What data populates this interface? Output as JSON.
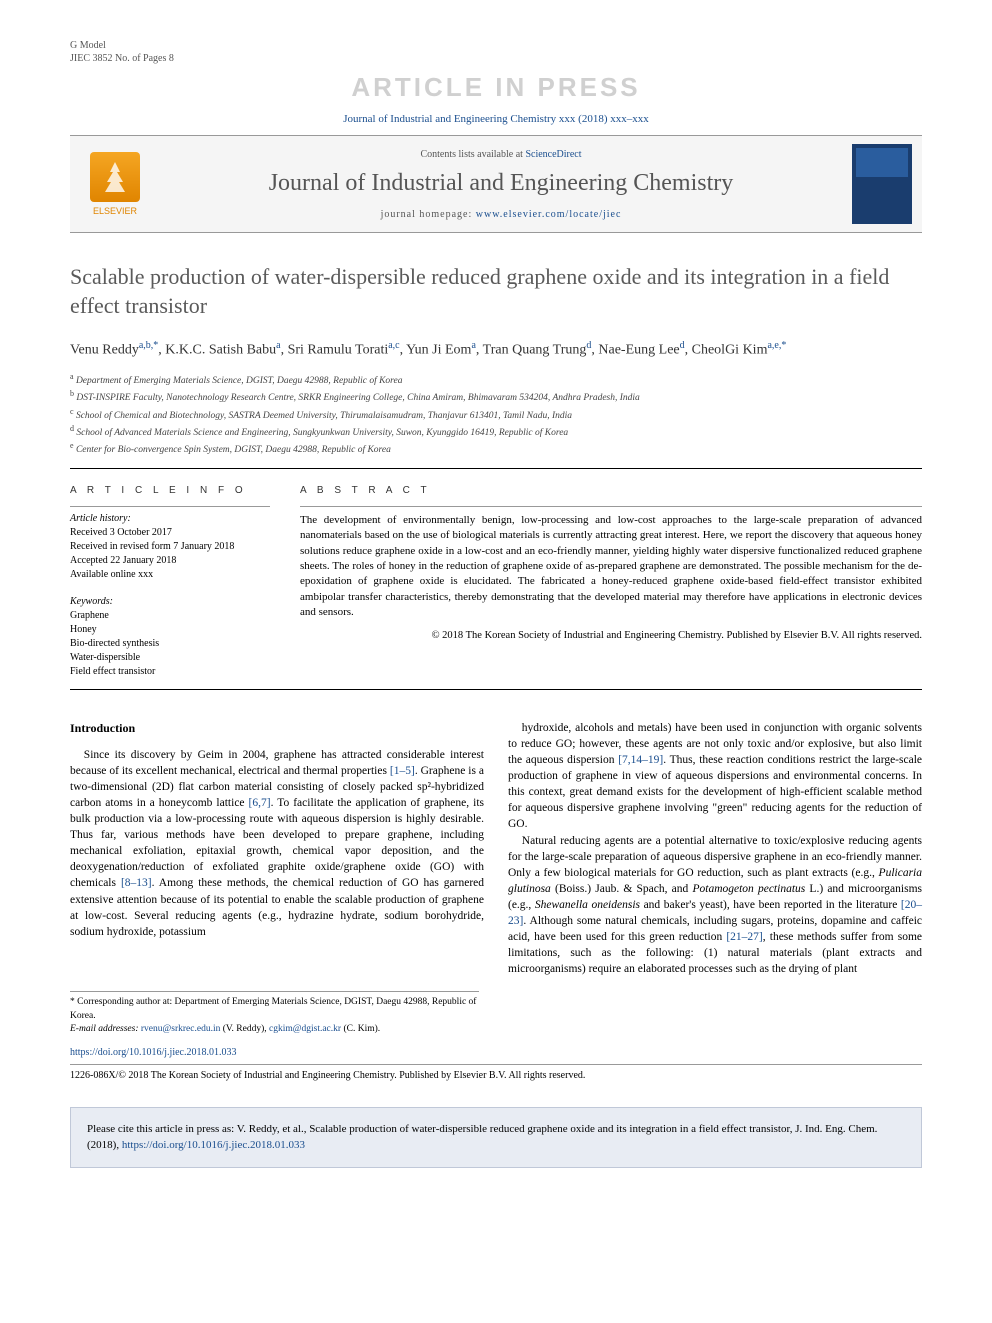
{
  "header": {
    "gmodel": "G Model",
    "gmodel_sub": "JIEC 3852 No. of Pages 8",
    "press_banner": "ARTICLE IN PRESS",
    "citeline": "Journal of Industrial and Engineering Chemistry xxx (2018) xxx–xxx"
  },
  "masthead": {
    "elsevier": "ELSEVIER",
    "contents_prefix": "Contents lists available at ",
    "contents_link": "ScienceDirect",
    "journal_name": "Journal of Industrial and Engineering Chemistry",
    "homepage_prefix": "journal homepage: ",
    "homepage_url": "www.elsevier.com/locate/jiec"
  },
  "article": {
    "title": "Scalable production of water-dispersible reduced graphene oxide and its integration in a field effect transistor",
    "authors_html": "Venu Reddy<sup>a,b,*</sup>, K.K.C. Satish Babu<sup>a</sup>, Sri Ramulu Torati<sup>a,c</sup>, Yun Ji Eom<sup>a</sup>, Tran Quang Trung<sup>d</sup>, Nae-Eung Lee<sup>d</sup>, CheolGi Kim<sup>a,e,*</sup>",
    "affiliations": [
      "a Department of Emerging Materials Science, DGIST, Daegu 42988, Republic of Korea",
      "b DST-INSPIRE Faculty, Nanotechnology Research Centre, SRKR Engineering College, China Amiram, Bhimavaram 534204, Andhra Pradesh, India",
      "c School of Chemical and Biotechnology, SASTRA Deemed University, Thirumalaisamudram, Thanjavur 613401, Tamil Nadu, India",
      "d School of Advanced Materials Science and Engineering, Sungkyunkwan University, Suwon, Kyunggido 16419, Republic of Korea",
      "e Center for Bio-convergence Spin System, DGIST, Daegu 42988, Republic of Korea"
    ]
  },
  "info": {
    "heading": "A R T I C L E   I N F O",
    "history_label": "Article history:",
    "history": [
      "Received 3 October 2017",
      "Received in revised form 7 January 2018",
      "Accepted 22 January 2018",
      "Available online xxx"
    ],
    "keywords_label": "Keywords:",
    "keywords": [
      "Graphene",
      "Honey",
      "Bio-directed synthesis",
      "Water-dispersible",
      "Field effect transistor"
    ]
  },
  "abstract": {
    "heading": "A B S T R A C T",
    "text": "The development of environmentally benign, low-processing and low-cost approaches to the large-scale preparation of advanced nanomaterials based on the use of biological materials is currently attracting great interest. Here, we report the discovery that aqueous honey solutions reduce graphene oxide in a low-cost and an eco-friendly manner, yielding highly water dispersive functionalized reduced graphene sheets. The roles of honey in the reduction of graphene oxide of as-prepared graphene are demonstrated. The possible mechanism for the de-epoxidation of graphene oxide is elucidated. The fabricated a honey-reduced graphene oxide-based field-effect transistor exhibited ambipolar transfer characteristics, thereby demonstrating that the developed material may therefore have applications in electronic devices and sensors.",
    "copyright": "© 2018 The Korean Society of Industrial and Engineering Chemistry. Published by Elsevier B.V. All rights reserved."
  },
  "body": {
    "intro_heading": "Introduction",
    "col1_p1": "Since its discovery by Geim in 2004, graphene has attracted considerable interest because of its excellent mechanical, electrical and thermal properties [1–5]. Graphene is a two-dimensional (2D) flat carbon material consisting of closely packed sp²-hybridized carbon atoms in a honeycomb lattice [6,7]. To facilitate the application of graphene, its bulk production via a low-processing route with aqueous dispersion is highly desirable. Thus far, various methods have been developed to prepare graphene, including mechanical exfoliation, epitaxial growth, chemical vapor deposition, and the deoxygenation/reduction of exfoliated graphite oxide/graphene oxide (GO) with chemicals [8–13]. Among these methods, the chemical reduction of GO has garnered extensive attention because of its potential to enable the scalable production of graphene at low-cost. Several reducing agents (e.g., hydrazine hydrate, sodium borohydride, sodium hydroxide, potassium",
    "col2_p1": "hydroxide, alcohols and metals) have been used in conjunction with organic solvents to reduce GO; however, these agents are not only toxic and/or explosive, but also limit the aqueous dispersion [7,14–19]. Thus, these reaction conditions restrict the large-scale production of graphene in view of aqueous dispersions and environmental concerns. In this context, great demand exists for the development of high-efficient scalable method for aqueous dispersive graphene involving \"green\" reducing agents for the reduction of GO.",
    "col2_p2": "Natural reducing agents are a potential alternative to toxic/explosive reducing agents for the large-scale preparation of aqueous dispersive graphene in an eco-friendly manner. Only a few biological materials for GO reduction, such as plant extracts (e.g., Pulicaria glutinosa (Boiss.) Jaub. & Spach, and Potamogeton pectinatus L.) and microorganisms (e.g., Shewanella oneidensis and baker's yeast), have been reported in the literature [20–23]. Although some natural chemicals, including sugars, proteins, dopamine and caffeic acid, have been used for this green reduction [21–27], these methods suffer from some limitations, such as the following: (1) natural materials (plant extracts and microorganisms) require an elaborated processes such as the drying of plant"
  },
  "footnotes": {
    "corresponding": "* Corresponding author at: Department of Emerging Materials Science, DGIST, Daegu 42988, Republic of Korea.",
    "email_label": "E-mail addresses:",
    "email1": "rvenu@srkrec.edu.in",
    "email1_who": "(V. Reddy),",
    "email2": "cgkim@dgist.ac.kr",
    "email2_who": "(C. Kim)."
  },
  "doi": {
    "url": "https://doi.org/10.1016/j.jiec.2018.01.033",
    "issn_line": "1226-086X/© 2018 The Korean Society of Industrial and Engineering Chemistry. Published by Elsevier B.V. All rights reserved."
  },
  "citebox": {
    "prefix": "Please cite this article in press as: V. Reddy, et al., Scalable production of water-dispersible reduced graphene oxide and its integration in a field effect transistor, J. Ind. Eng. Chem. (2018), ",
    "doi": "https://doi.org/10.1016/j.jiec.2018.01.033"
  },
  "colors": {
    "link": "#1a4e8e",
    "banner_grey": "#d0d0d0",
    "title_grey": "#5a5a5a",
    "masthead_bg": "#f5f5f5",
    "citebox_bg": "#e8ecf3",
    "elsevier_orange": "#e08500"
  }
}
